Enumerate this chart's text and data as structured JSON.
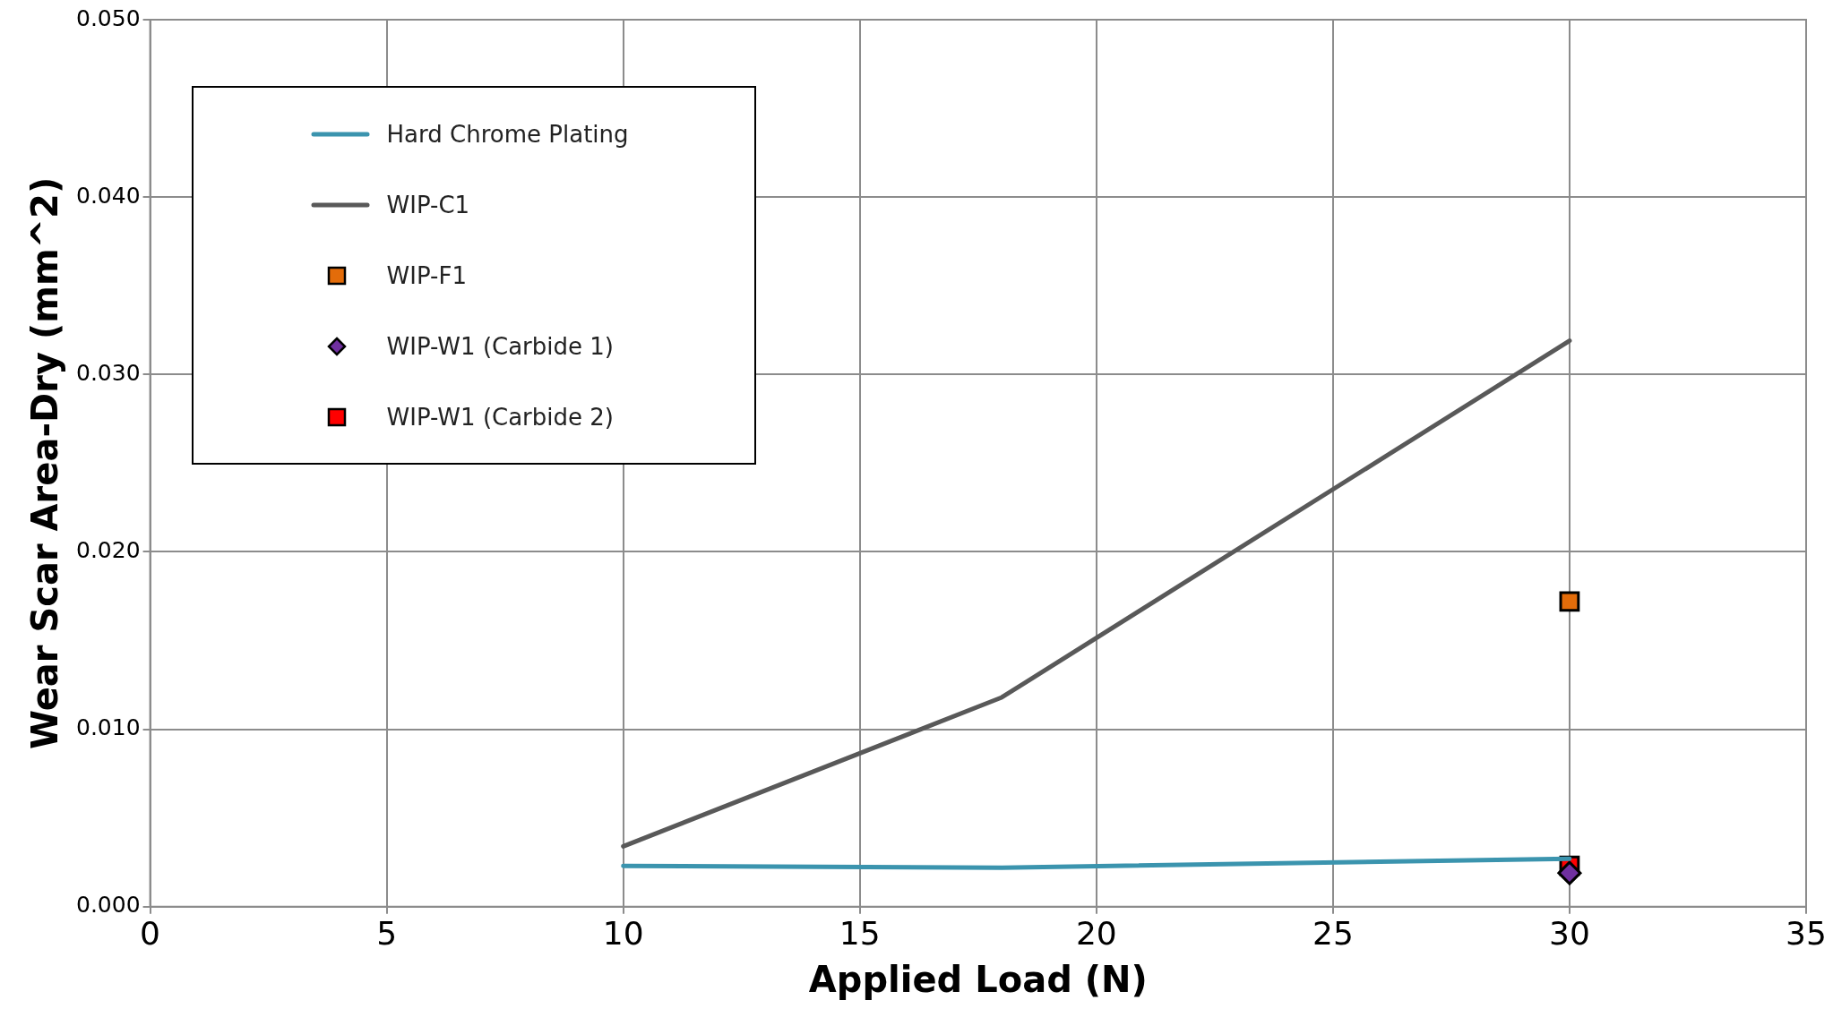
{
  "chart_data": {
    "type": "line",
    "xlabel": "Applied Load (N)",
    "ylabel": "Wear Scar Area-Dry (mm^2)",
    "xlim": [
      0,
      35
    ],
    "xticks": [
      0,
      5,
      10,
      15,
      20,
      25,
      30,
      35
    ],
    "ylim": [
      0,
      0.05
    ],
    "yticks": [
      {
        "value": 0,
        "label": "0.000"
      },
      {
        "value": 0.01,
        "label": "0.010"
      },
      {
        "value": 0.02,
        "label": "0.020"
      },
      {
        "value": 0.03,
        "label": "0.030"
      },
      {
        "value": 0.04,
        "label": "0.040"
      },
      {
        "value": 0.05,
        "label": "0.050"
      }
    ],
    "grid": true,
    "legend": "top left",
    "series": [
      {
        "name": "Hard Chrome Plating",
        "color": "#3b94ae",
        "x": [
          10,
          18,
          30
        ],
        "values": [
          0.0023,
          0.0022,
          0.0027
        ],
        "marker": "none"
      },
      {
        "name": "WIP-C1",
        "color": "#595959",
        "x": [
          10,
          18,
          30
        ],
        "values": [
          0.0034,
          0.0118,
          0.0319
        ],
        "marker": "none"
      },
      {
        "name": "WIP-F1",
        "type": "scatter",
        "color": "#e36c0a",
        "x": [
          30
        ],
        "values": [
          0.0172
        ],
        "marker": "square"
      },
      {
        "name": "WIP-W1 (Carbide 1)",
        "type": "scatter",
        "color": "#7030a0",
        "x": [
          30
        ],
        "values": [
          0.0019
        ],
        "marker": "diamond"
      },
      {
        "name": "WIP-W1 (Carbide 2)",
        "type": "scatter",
        "color": "#ff0000",
        "x": [
          30
        ],
        "values": [
          0.0023
        ],
        "marker": "square"
      }
    ]
  }
}
